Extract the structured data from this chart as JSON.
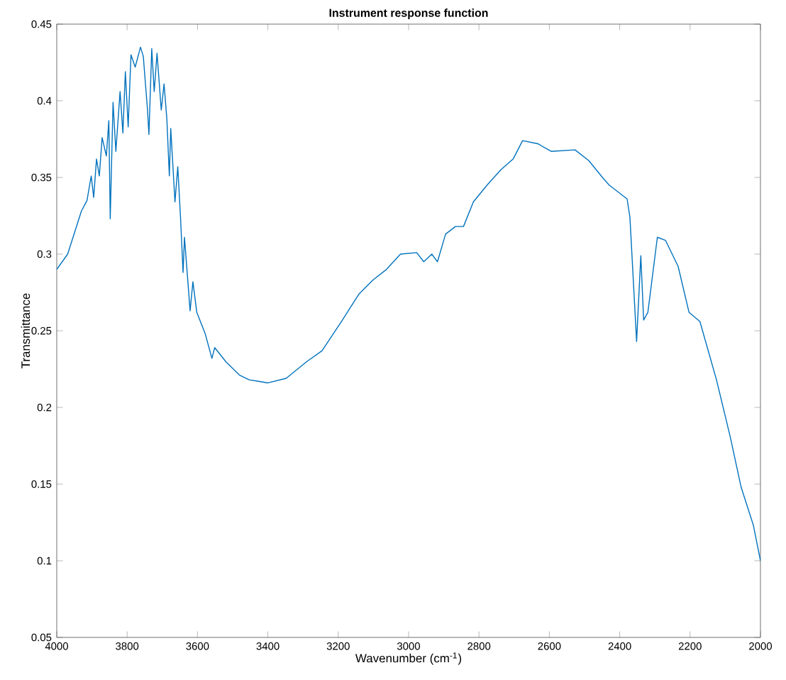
{
  "chart_data": {
    "type": "line",
    "title": "Instrument response function",
    "xlabel": "Wavenumber (cm$^{-1}$)",
    "ylabel": "Transmittance",
    "xlim": [
      4000,
      2000
    ],
    "xticks": [
      4000,
      3800,
      3600,
      3400,
      3200,
      3000,
      2800,
      2600,
      2400,
      2200,
      2000
    ],
    "ylim": [
      0.05,
      0.45
    ],
    "yticks": [
      0.05,
      0.1,
      0.15,
      0.2,
      0.25,
      0.3,
      0.35,
      0.4,
      0.45
    ],
    "line_style": "solid",
    "series": [
      {
        "color": "#0072bd",
        "x": [
          4000,
          3969,
          3930,
          3914,
          3902,
          3895,
          3887,
          3879,
          3871,
          3859,
          3852,
          3848,
          3840,
          3832,
          3820,
          3812,
          3805,
          3797,
          3789,
          3777,
          3762,
          3754,
          3742,
          3738,
          3730,
          3723,
          3715,
          3703,
          3695,
          3687,
          3680,
          3676,
          3664,
          3656,
          3648,
          3641,
          3637,
          3621,
          3613,
          3602,
          3578,
          3559,
          3551,
          3520,
          3480,
          3453,
          3426,
          3400,
          3348,
          3289,
          3246,
          3191,
          3141,
          3102,
          3063,
          3023,
          2977,
          2957,
          2934,
          2918,
          2895,
          2867,
          2844,
          2816,
          2777,
          2738,
          2703,
          2676,
          2633,
          2594,
          2527,
          2488,
          2449,
          2430,
          2379,
          2371,
          2352,
          2340,
          2332,
          2320,
          2293,
          2270,
          2234,
          2203,
          2172,
          2125,
          2086,
          2055,
          2020,
          2000
        ],
        "values": [
          0.29,
          0.3,
          0.328,
          0.335,
          0.351,
          0.337,
          0.362,
          0.351,
          0.376,
          0.364,
          0.387,
          0.323,
          0.399,
          0.367,
          0.406,
          0.379,
          0.419,
          0.383,
          0.43,
          0.422,
          0.435,
          0.429,
          0.394,
          0.378,
          0.434,
          0.406,
          0.431,
          0.394,
          0.411,
          0.388,
          0.351,
          0.382,
          0.334,
          0.357,
          0.323,
          0.288,
          0.311,
          0.263,
          0.282,
          0.262,
          0.248,
          0.232,
          0.239,
          0.23,
          0.221,
          0.218,
          0.217,
          0.216,
          0.219,
          0.23,
          0.237,
          0.256,
          0.274,
          0.283,
          0.29,
          0.3,
          0.301,
          0.295,
          0.3,
          0.295,
          0.313,
          0.318,
          0.318,
          0.334,
          0.345,
          0.355,
          0.362,
          0.374,
          0.372,
          0.367,
          0.368,
          0.361,
          0.35,
          0.345,
          0.336,
          0.324,
          0.243,
          0.299,
          0.257,
          0.262,
          0.311,
          0.309,
          0.292,
          0.262,
          0.256,
          0.218,
          0.181,
          0.148,
          0.123,
          0.1
        ]
      }
    ]
  }
}
